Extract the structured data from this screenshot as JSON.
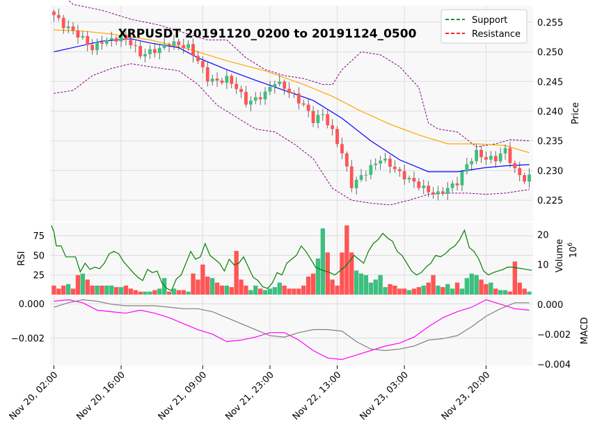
{
  "chart_data": {
    "type": "candlestick",
    "title": "XRPUSDT 20191120_0200 to 20191124_0500",
    "legend": {
      "placement": "top-right",
      "entries": [
        {
          "label": "Support",
          "color": "#008000"
        },
        {
          "label": "Resistance",
          "color": "#ff0000"
        }
      ]
    },
    "colors": {
      "up": "#3dbf7f",
      "down": "#ff5555",
      "ma_fast": "#0000ff",
      "ma_slow": "#ffa500",
      "bollinger": "#800080",
      "rsi": "#008000",
      "macd": "#808080",
      "signal": "#ff00ff"
    },
    "x_ticks": [
      "Nov 20, 02:00",
      "Nov 20, 16:00",
      "Nov 21, 09:00",
      "Nov 21, 23:00",
      "Nov 22, 13:00",
      "Nov 23, 03:00",
      "Nov 23, 20:00"
    ],
    "x_tick_index": [
      0,
      14,
      31,
      45,
      59,
      73,
      90
    ],
    "n_bars": 100,
    "price": {
      "ylabel": "Price",
      "ylim": [
        0.2215,
        0.2578
      ],
      "ticks": [
        0.225,
        0.23,
        0.235,
        0.24,
        0.245,
        0.25,
        0.255
      ],
      "tick_labels": [
        "0.225",
        "0.230",
        "0.235",
        "0.240",
        "0.245",
        "0.250",
        "0.255"
      ],
      "close_path": [
        [
          0,
          0.2562
        ],
        [
          2,
          0.2545
        ],
        [
          4,
          0.2535
        ],
        [
          6,
          0.2522
        ],
        [
          8,
          0.2505
        ],
        [
          10,
          0.2518
        ],
        [
          12,
          0.252
        ],
        [
          14,
          0.2525
        ],
        [
          16,
          0.2515
        ],
        [
          18,
          0.2495
        ],
        [
          20,
          0.25
        ],
        [
          22,
          0.2505
        ],
        [
          24,
          0.2515
        ],
        [
          26,
          0.2512
        ],
        [
          28,
          0.2508
        ],
        [
          30,
          0.2485
        ],
        [
          32,
          0.2455
        ],
        [
          34,
          0.245
        ],
        [
          36,
          0.2455
        ],
        [
          38,
          0.244
        ],
        [
          40,
          0.2415
        ],
        [
          42,
          0.242
        ],
        [
          44,
          0.243
        ],
        [
          46,
          0.245
        ],
        [
          48,
          0.244
        ],
        [
          50,
          0.2425
        ],
        [
          52,
          0.241
        ],
        [
          54,
          0.2385
        ],
        [
          56,
          0.2395
        ],
        [
          58,
          0.2365
        ],
        [
          60,
          0.233
        ],
        [
          62,
          0.2275
        ],
        [
          64,
          0.229
        ],
        [
          66,
          0.2305
        ],
        [
          68,
          0.232
        ],
        [
          70,
          0.231
        ],
        [
          72,
          0.2295
        ],
        [
          74,
          0.2285
        ],
        [
          76,
          0.2275
        ],
        [
          78,
          0.2265
        ],
        [
          80,
          0.226
        ],
        [
          82,
          0.227
        ],
        [
          84,
          0.228
        ],
        [
          86,
          0.231
        ],
        [
          88,
          0.233
        ],
        [
          90,
          0.232
        ],
        [
          92,
          0.232
        ],
        [
          94,
          0.2335
        ],
        [
          96,
          0.23
        ],
        [
          98,
          0.2285
        ],
        [
          99,
          0.2288
        ]
      ],
      "ma_fast": [
        [
          0,
          0.25
        ],
        [
          10,
          0.2518
        ],
        [
          16,
          0.2522
        ],
        [
          20,
          0.2515
        ],
        [
          26,
          0.2507
        ],
        [
          30,
          0.249
        ],
        [
          36,
          0.247
        ],
        [
          42,
          0.2452
        ],
        [
          48,
          0.2435
        ],
        [
          54,
          0.2418
        ],
        [
          60,
          0.2388
        ],
        [
          66,
          0.235
        ],
        [
          72,
          0.2318
        ],
        [
          78,
          0.2298
        ],
        [
          84,
          0.2298
        ],
        [
          90,
          0.2305
        ],
        [
          94,
          0.2308
        ],
        [
          99,
          0.231
        ]
      ],
      "ma_slow": [
        [
          0,
          0.2537
        ],
        [
          6,
          0.2535
        ],
        [
          12,
          0.253
        ],
        [
          20,
          0.252
        ],
        [
          28,
          0.2505
        ],
        [
          36,
          0.2485
        ],
        [
          44,
          0.2468
        ],
        [
          52,
          0.2445
        ],
        [
          58,
          0.2425
        ],
        [
          64,
          0.24
        ],
        [
          70,
          0.2378
        ],
        [
          76,
          0.236
        ],
        [
          82,
          0.2345
        ],
        [
          88,
          0.2345
        ],
        [
          94,
          0.2342
        ],
        [
          99,
          0.233
        ]
      ],
      "bb_upper": [
        [
          0,
          0.261
        ],
        [
          4,
          0.258
        ],
        [
          10,
          0.257
        ],
        [
          16,
          0.2555
        ],
        [
          22,
          0.2545
        ],
        [
          28,
          0.253
        ],
        [
          32,
          0.252
        ],
        [
          36,
          0.252
        ],
        [
          40,
          0.249
        ],
        [
          44,
          0.247
        ],
        [
          48,
          0.246
        ],
        [
          52,
          0.2455
        ],
        [
          56,
          0.2445
        ],
        [
          58,
          0.2445
        ],
        [
          60,
          0.247
        ],
        [
          64,
          0.25
        ],
        [
          68,
          0.2495
        ],
        [
          72,
          0.2475
        ],
        [
          76,
          0.244
        ],
        [
          78,
          0.238
        ],
        [
          80,
          0.237
        ],
        [
          84,
          0.2365
        ],
        [
          88,
          0.234
        ],
        [
          92,
          0.2345
        ],
        [
          95,
          0.2352
        ],
        [
          99,
          0.235
        ]
      ],
      "bb_lower": [
        [
          0,
          0.243
        ],
        [
          4,
          0.2435
        ],
        [
          8,
          0.246
        ],
        [
          12,
          0.2472
        ],
        [
          16,
          0.248
        ],
        [
          20,
          0.2475
        ],
        [
          26,
          0.2468
        ],
        [
          30,
          0.2445
        ],
        [
          34,
          0.241
        ],
        [
          38,
          0.239
        ],
        [
          42,
          0.237
        ],
        [
          46,
          0.2365
        ],
        [
          50,
          0.2345
        ],
        [
          54,
          0.232
        ],
        [
          58,
          0.227
        ],
        [
          62,
          0.225
        ],
        [
          66,
          0.2245
        ],
        [
          70,
          0.2242
        ],
        [
          74,
          0.225
        ],
        [
          78,
          0.226
        ],
        [
          82,
          0.2262
        ],
        [
          86,
          0.2262
        ],
        [
          90,
          0.226
        ],
        [
          94,
          0.2262
        ],
        [
          99,
          0.2268
        ]
      ]
    },
    "volume": {
      "ylabel": "Volume",
      "unit": "10^6",
      "ylim": [
        0,
        24
      ],
      "ticks": [
        10,
        20
      ],
      "values": [
        3,
        2,
        3,
        3.5,
        2,
        6.5,
        7,
        5,
        3,
        3,
        3,
        3,
        3,
        2.5,
        2.5,
        3,
        2,
        1.5,
        1,
        1,
        1,
        1.5,
        2,
        5.5,
        1,
        2,
        1.5,
        1.5,
        1,
        7,
        5,
        10,
        6,
        5.5,
        4,
        3,
        3,
        2.5,
        14.5,
        5,
        3,
        1.5,
        3,
        2,
        1.5,
        2,
        2.5,
        4,
        3,
        2,
        2,
        2,
        3,
        6,
        7,
        12,
        22,
        14,
        5,
        3,
        14,
        23,
        14,
        8,
        7,
        6.5,
        4,
        5,
        6.5,
        2.5,
        3.5,
        3,
        2,
        2,
        1.5,
        2,
        2.5,
        3,
        4,
        6.5,
        3,
        2.5,
        3.5,
        2,
        4,
        2,
        5.5,
        7,
        6.5,
        5,
        3.5,
        4,
        2,
        1.5,
        1.5,
        1,
        11,
        4,
        2,
        1
      ]
    },
    "rsi": {
      "ylabel": "RSI",
      "ylim": [
        0,
        92
      ],
      "ticks": [
        25,
        50,
        75
      ],
      "values": [
        [
          0,
          88
        ],
        [
          1,
          80
        ],
        [
          2,
          62
        ],
        [
          4,
          62
        ],
        [
          6,
          48
        ],
        [
          8,
          48
        ],
        [
          10,
          48
        ],
        [
          12,
          29
        ],
        [
          14,
          40
        ],
        [
          16,
          32
        ],
        [
          18,
          35
        ],
        [
          20,
          33
        ],
        [
          22,
          40
        ],
        [
          24,
          52
        ],
        [
          26,
          55
        ],
        [
          28,
          52
        ],
        [
          30,
          42
        ],
        [
          32,
          35
        ],
        [
          34,
          28
        ],
        [
          36,
          22
        ],
        [
          38,
          18
        ],
        [
          40,
          32
        ],
        [
          42,
          28
        ],
        [
          44,
          30
        ],
        [
          46,
          15
        ],
        [
          48,
          8
        ],
        [
          50,
          5
        ],
        [
          52,
          20
        ],
        [
          54,
          25
        ],
        [
          56,
          40
        ],
        [
          58,
          55
        ],
        [
          60,
          45
        ],
        [
          62,
          48
        ],
        [
          64,
          65
        ],
        [
          66,
          50
        ],
        [
          68,
          45
        ],
        [
          70,
          40
        ],
        [
          72,
          30
        ],
        [
          74,
          45
        ],
        [
          76,
          38
        ],
        [
          78,
          40
        ],
        [
          80,
          48
        ],
        [
          82,
          35
        ],
        [
          84,
          22
        ],
        [
          86,
          18
        ],
        [
          88,
          10
        ],
        [
          90,
          8
        ],
        [
          92,
          15
        ],
        [
          94,
          28
        ],
        [
          96,
          25
        ],
        [
          98,
          40
        ],
        [
          100,
          45
        ],
        [
          102,
          50
        ],
        [
          104,
          62
        ],
        [
          106,
          55
        ],
        [
          108,
          45
        ],
        [
          110,
          35
        ],
        [
          112,
          32
        ],
        [
          114,
          30
        ],
        [
          116,
          28
        ],
        [
          118,
          25
        ],
        [
          120,
          30
        ],
        [
          122,
          35
        ],
        [
          124,
          42
        ],
        [
          126,
          50
        ],
        [
          128,
          45
        ],
        [
          130,
          40
        ],
        [
          132,
          55
        ],
        [
          134,
          65
        ],
        [
          136,
          70
        ],
        [
          138,
          78
        ],
        [
          140,
          72
        ],
        [
          142,
          68
        ],
        [
          144,
          55
        ],
        [
          146,
          50
        ],
        [
          148,
          40
        ],
        [
          150,
          30
        ],
        [
          152,
          25
        ],
        [
          154,
          28
        ],
        [
          156,
          35
        ],
        [
          158,
          40
        ],
        [
          160,
          50
        ],
        [
          162,
          48
        ],
        [
          164,
          52
        ],
        [
          166,
          58
        ],
        [
          168,
          62
        ],
        [
          170,
          70
        ],
        [
          172,
          82
        ],
        [
          174,
          60
        ],
        [
          176,
          55
        ],
        [
          178,
          45
        ],
        [
          180,
          30
        ],
        [
          182,
          25
        ],
        [
          184,
          28
        ],
        [
          186,
          30
        ],
        [
          188,
          32
        ],
        [
          190,
          35
        ],
        [
          192,
          35
        ],
        [
          194,
          34
        ],
        [
          196,
          33
        ],
        [
          198,
          32
        ],
        [
          200,
          31
        ]
      ]
    },
    "macd": {
      "ylabel": "MACD",
      "ylim_left": [
        -0.0036,
        0.00045
      ],
      "ticks_left": [
        0.0,
        -0.002
      ],
      "tick_labels_left": [
        "0.000",
        "−0.002"
      ],
      "ylim_right": [
        -0.0041,
        0.00055
      ],
      "ticks_right": [
        0.0,
        -0.002,
        -0.004
      ],
      "tick_labels_right": [
        "0.000",
        "−0.002",
        "−0.004"
      ],
      "macd_line": [
        [
          0,
          -0.0002
        ],
        [
          3,
          0.0001
        ],
        [
          6,
          0.0003
        ],
        [
          9,
          0.0002
        ],
        [
          12,
          0.0
        ],
        [
          15,
          -0.0001
        ],
        [
          18,
          -0.0001
        ],
        [
          21,
          -0.0001
        ],
        [
          24,
          -0.0002
        ],
        [
          27,
          -0.0003
        ],
        [
          30,
          -0.0003
        ],
        [
          33,
          -0.0005
        ],
        [
          36,
          -0.0009
        ],
        [
          39,
          -0.0013
        ],
        [
          42,
          -0.0017
        ],
        [
          45,
          -0.0021
        ],
        [
          48,
          -0.0022
        ],
        [
          51,
          -0.0019
        ],
        [
          54,
          -0.0017
        ],
        [
          57,
          -0.0017
        ],
        [
          60,
          -0.0018
        ],
        [
          63,
          -0.0025
        ],
        [
          66,
          -0.003
        ],
        [
          69,
          -0.0031
        ],
        [
          72,
          -0.003
        ],
        [
          75,
          -0.0028
        ],
        [
          78,
          -0.0024
        ],
        [
          81,
          -0.0023
        ],
        [
          84,
          -0.0021
        ],
        [
          87,
          -0.0015
        ],
        [
          90,
          -0.0008
        ],
        [
          93,
          -0.0003
        ],
        [
          96,
          0.0001
        ],
        [
          99,
          0.0001
        ]
      ],
      "signal_line": [
        [
          0,
          0.0002
        ],
        [
          3,
          0.0003
        ],
        [
          6,
          0.0001
        ],
        [
          9,
          -0.0004
        ],
        [
          12,
          -0.0005
        ],
        [
          15,
          -0.0006
        ],
        [
          18,
          -0.0004
        ],
        [
          21,
          -0.0006
        ],
        [
          24,
          -0.0009
        ],
        [
          27,
          -0.0013
        ],
        [
          30,
          -0.0017
        ],
        [
          33,
          -0.002
        ],
        [
          36,
          -0.0025
        ],
        [
          39,
          -0.0024
        ],
        [
          42,
          -0.0022
        ],
        [
          45,
          -0.0019
        ],
        [
          48,
          -0.0019
        ],
        [
          51,
          -0.0024
        ],
        [
          54,
          -0.0031
        ],
        [
          57,
          -0.0036
        ],
        [
          60,
          -0.0037
        ],
        [
          63,
          -0.0034
        ],
        [
          66,
          -0.0031
        ],
        [
          69,
          -0.0028
        ],
        [
          72,
          -0.0026
        ],
        [
          75,
          -0.0022
        ],
        [
          78,
          -0.0015
        ],
        [
          81,
          -0.0009
        ],
        [
          84,
          -0.0005
        ],
        [
          87,
          -0.0002
        ],
        [
          90,
          0.0003
        ],
        [
          93,
          0.0
        ],
        [
          96,
          -0.0003
        ],
        [
          99,
          -0.0004
        ]
      ]
    }
  }
}
